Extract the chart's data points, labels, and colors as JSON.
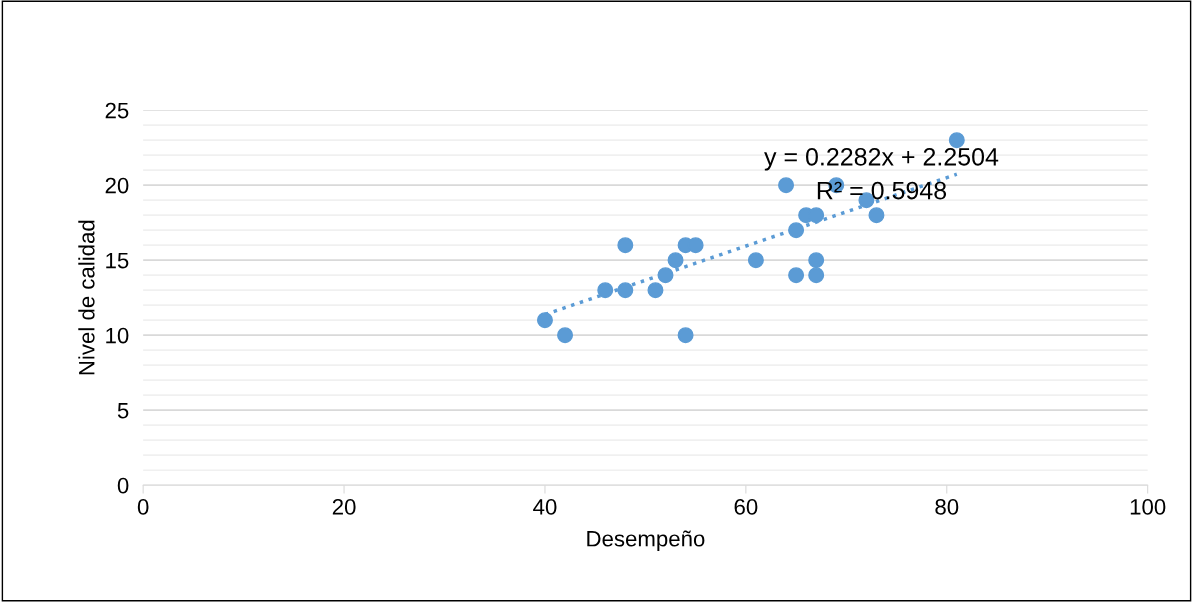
{
  "chart_data": {
    "type": "scatter",
    "xlabel": "Desempeño",
    "ylabel": "Nivel de calidad",
    "x": [
      40,
      42,
      46,
      48,
      48,
      51,
      52,
      53,
      54,
      54,
      55,
      61,
      64,
      65,
      65,
      66,
      67,
      67,
      67,
      69,
      72,
      73,
      81
    ],
    "series": [
      {
        "color": "#5b9bd5",
        "marker": "circle",
        "values": [
          11,
          10,
          13,
          16,
          13,
          13,
          14,
          15,
          16,
          10,
          16,
          15,
          20,
          17,
          14,
          18,
          18,
          15,
          14,
          20,
          19,
          18,
          23
        ]
      },
      {
        "type": "line",
        "color": "#5b9bd5",
        "line_style": "dotted",
        "marker": "none",
        "x": [
          40,
          81
        ],
        "values": [
          11.38,
          20.73
        ]
      }
    ],
    "annotations": [
      "y = 0.2282x + 2.2504",
      "R² = 0.5948"
    ],
    "xlim": [
      0,
      100
    ],
    "xticks": [
      0,
      20,
      40,
      60,
      80,
      100
    ],
    "ylim": [
      0,
      25
    ],
    "yticks": [
      0,
      {
        "value": 1,
        "label": null
      },
      {
        "value": 2,
        "label": null
      },
      {
        "value": 3,
        "label": null
      },
      {
        "value": 4,
        "label": null
      },
      5,
      {
        "value": 6,
        "label": null
      },
      {
        "value": 7,
        "label": null
      },
      {
        "value": 8,
        "label": null
      },
      {
        "value": 9,
        "label": null
      },
      10,
      {
        "value": 11,
        "label": null
      },
      {
        "value": 12,
        "label": null
      },
      {
        "value": 13,
        "label": null
      },
      {
        "value": 14,
        "label": null
      },
      15,
      {
        "value": 16,
        "label": null
      },
      {
        "value": 17,
        "label": null
      },
      {
        "value": 18,
        "label": null
      },
      {
        "value": 19,
        "label": null
      },
      20,
      {
        "value": 21,
        "label": null
      },
      {
        "value": 22,
        "label": null
      },
      {
        "value": 23,
        "label": null
      },
      {
        "value": 24,
        "label": null
      },
      25
    ],
    "grid": "y",
    "legend": false
  }
}
